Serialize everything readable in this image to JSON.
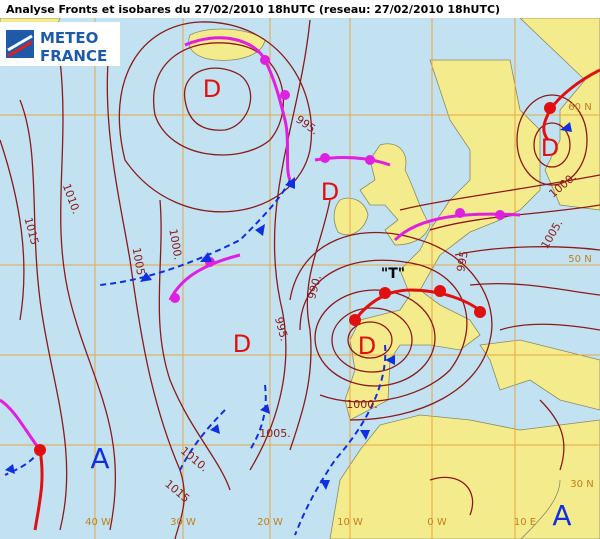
{
  "title": "Analyse Fronts et isobares du 27/02/2010 18hUTC (reseau: 27/02/2010 18hUTC)",
  "logo": {
    "line1": "METEO",
    "line2": "FRANCE"
  },
  "pressure_centers": [
    "D",
    "D",
    "D",
    "D",
    "D",
    "A",
    "A"
  ],
  "storm_name": "\"T\"",
  "isobar_labels": [
    "995.",
    "1010.",
    "1015",
    "1005",
    "1000.",
    "990.",
    "995.",
    "1005.",
    "1010.",
    "1015",
    "1000.",
    "1005.",
    "995",
    "1000."
  ],
  "grid_labels": [
    "40 W",
    "30 W",
    "20 W",
    "10 W",
    "0 W",
    "10 E",
    "60 N",
    "50 N",
    "30 N"
  ]
}
